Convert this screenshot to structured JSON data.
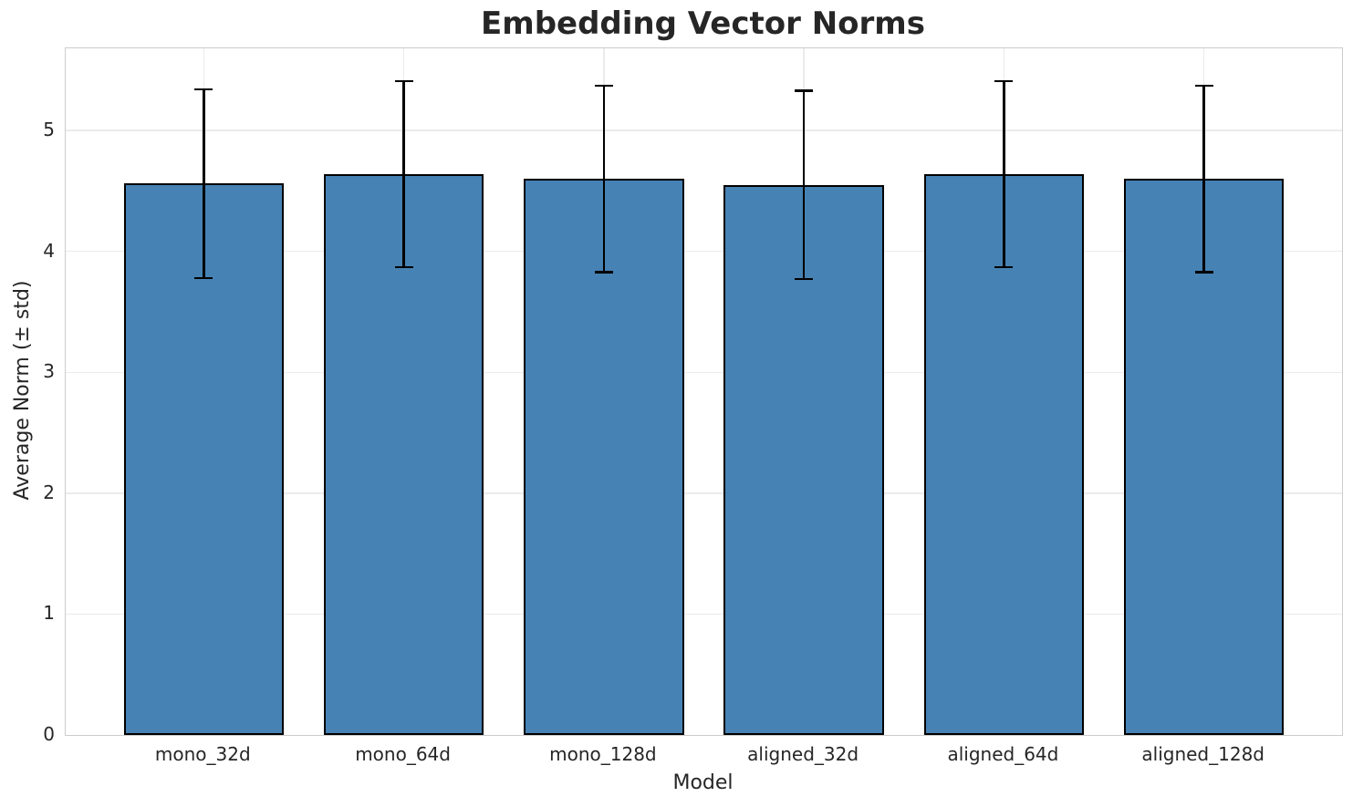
{
  "figure": {
    "background_color": "#ffffff",
    "text_color": "#262626"
  },
  "chart_data": {
    "type": "bar",
    "title": "Embedding Vector Norms",
    "xlabel": "Model",
    "ylabel": "Average Norm (± std)",
    "categories": [
      "mono_32d",
      "mono_64d",
      "mono_128d",
      "aligned_32d",
      "aligned_64d",
      "aligned_128d"
    ],
    "series": [
      {
        "name": "Average Norm",
        "values": [
          4.56,
          4.64,
          4.6,
          4.55,
          4.64,
          4.6
        ],
        "std": [
          0.78,
          0.77,
          0.77,
          0.78,
          0.77,
          0.77
        ]
      }
    ],
    "error_bars": {
      "upper": [
        5.34,
        5.41,
        5.37,
        5.33,
        5.41,
        5.37
      ],
      "lower": [
        3.78,
        3.87,
        3.83,
        3.77,
        3.87,
        3.83
      ]
    },
    "yticks": [
      0,
      1,
      2,
      3,
      4,
      5
    ],
    "ylim": [
      0,
      5.68
    ],
    "xlim": [
      -0.69,
      5.69
    ],
    "bar_width_units": 0.8,
    "grid": true,
    "legend": false,
    "colors": {
      "bar_fill": "#4682B4",
      "bar_edge": "#000000",
      "error_bar": "#000000",
      "gridline": "#ebebeb",
      "spine": "#cccccc",
      "text": "#262626"
    }
  }
}
